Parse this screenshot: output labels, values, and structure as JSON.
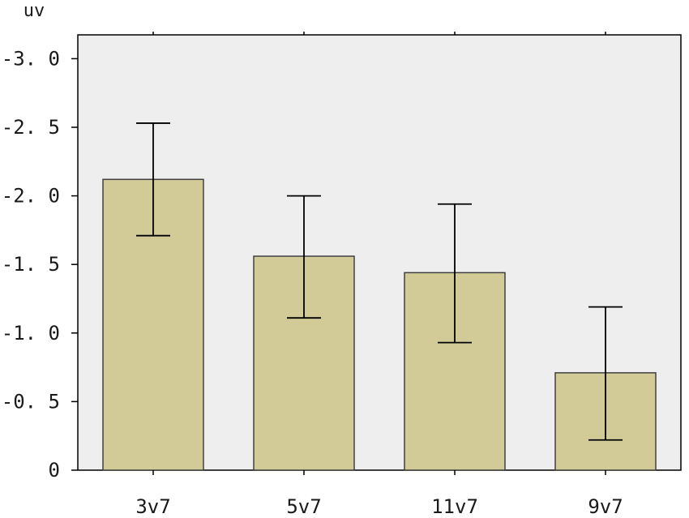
{
  "chart_data": {
    "type": "bar",
    "title": "",
    "ylabel": "uv",
    "xlabel": "",
    "ylim": [
      0,
      -3.0
    ],
    "y_axis_inverted": true,
    "yticks": [
      0,
      -0.5,
      -1.0,
      -1.5,
      -2.0,
      -2.5,
      -3.0
    ],
    "ytick_labels": [
      "0",
      "-0. 5",
      "-1. 0",
      "-1. 5",
      "-2. 0",
      "-2. 5",
      "-3. 0"
    ],
    "categories": [
      "3v7",
      "5v7",
      "11v7",
      "9v7"
    ],
    "values": [
      -2.12,
      -1.56,
      -1.44,
      -0.71
    ],
    "error_low": [
      -1.71,
      -1.11,
      -0.93,
      -0.22
    ],
    "error_high": [
      -2.53,
      -2.0,
      -1.94,
      -1.19
    ],
    "grid": false,
    "colors": {
      "bar_fill": "#d2cb98",
      "bar_stroke": "#404040",
      "plot_background": "#eeeeee",
      "frame": "#000000"
    }
  }
}
